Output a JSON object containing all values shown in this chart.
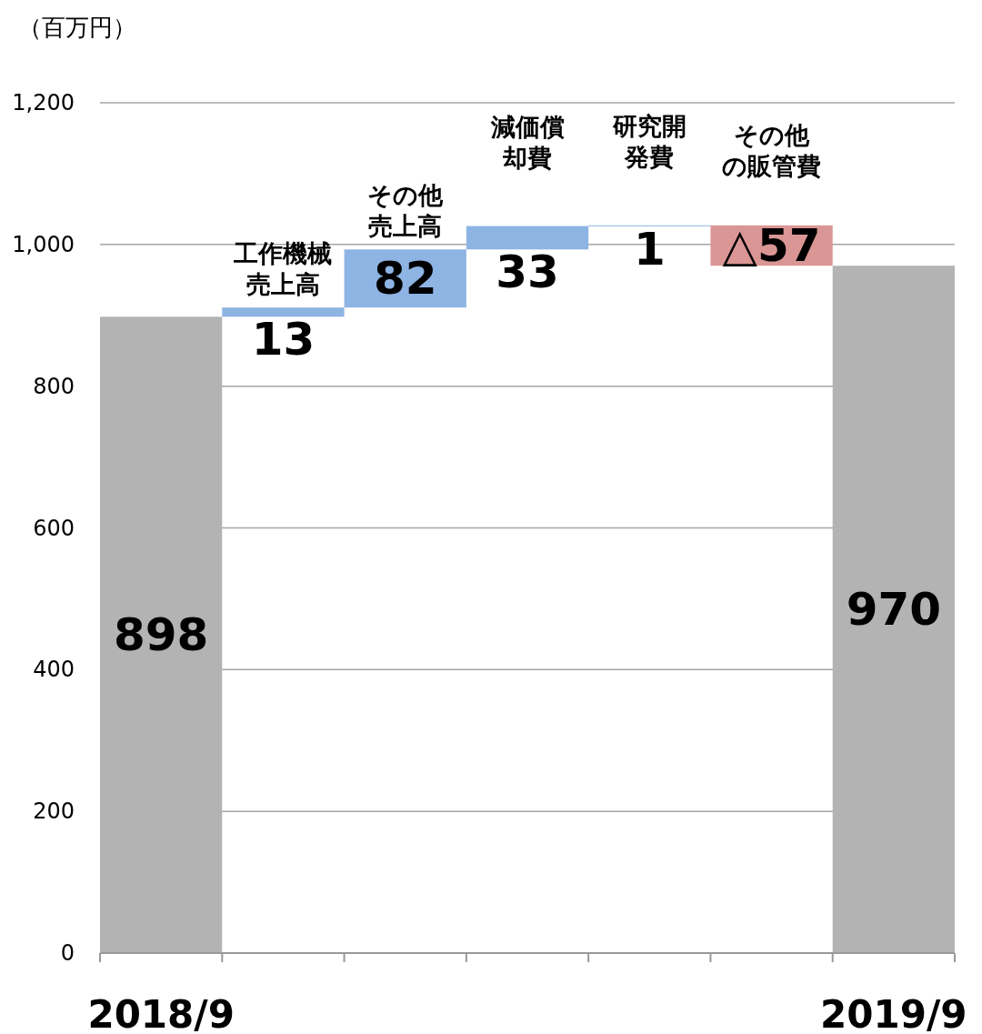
{
  "chart_data": {
    "type": "bar",
    "ylabel": "（百万円）",
    "categories": [
      "2018/9",
      "工作機械売上高",
      "その他売上高",
      "減価償却費",
      "研究開発費",
      "その他の販管費",
      "2019/9"
    ],
    "values": [
      898,
      13,
      82,
      33,
      1,
      -57,
      970
    ],
    "base": [
      0,
      898,
      911,
      993,
      1026,
      1027,
      0
    ],
    "colors": [
      "#b3b3b3",
      "#8db4e2",
      "#8db4e2",
      "#8db4e2",
      "#8db4e2",
      "#da9694",
      "#b3b3b3"
    ],
    "value_labels": [
      "898",
      "13",
      "82",
      "33",
      "1",
      "△57",
      "970"
    ],
    "ylim": [
      0,
      1200
    ],
    "yticks": [
      0,
      200,
      400,
      600,
      {
        "value": 800,
        "label": "800"
      },
      {
        "value": 1000,
        "label": "1,000"
      },
      {
        "value": 1200,
        "label": "1,200"
      }
    ],
    "grid": "y"
  }
}
